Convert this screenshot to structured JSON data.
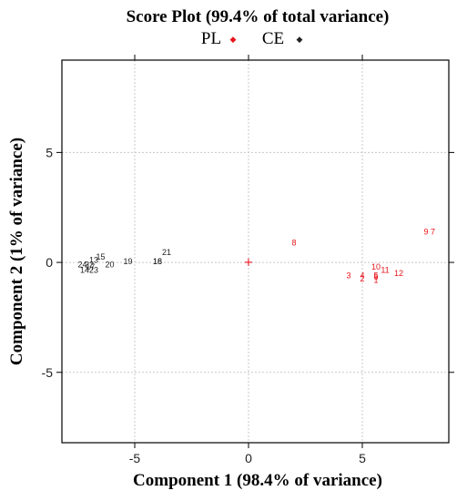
{
  "colors": {
    "PL": "#e8141b",
    "CE": "#222222"
  },
  "chart_data": {
    "type": "scatter",
    "title": "Score Plot (99.4% of total variance)",
    "xlabel": "Component 1 (98.4% of variance)",
    "ylabel": "Component 2 (1% of variance)",
    "xlim": [
      -8.2,
      8.8
    ],
    "ylim": [
      -8.2,
      9.2
    ],
    "xticks": [
      -5,
      0,
      5
    ],
    "yticks": [
      -5,
      0,
      5
    ],
    "grid": true,
    "legend_placement": "top-center",
    "legend": [
      {
        "name": "PL",
        "symbol": "◆"
      },
      {
        "name": "CE",
        "symbol": "◆"
      }
    ],
    "center_marker": {
      "x": 0,
      "y": 0,
      "symbol": "+"
    },
    "series": [
      {
        "name": "PL",
        "points": [
          {
            "label": "8",
            "x": 2.0,
            "y": 0.9
          },
          {
            "label": "9",
            "x": 7.8,
            "y": 1.4
          },
          {
            "label": "7",
            "x": 8.1,
            "y": 1.4
          },
          {
            "label": "10",
            "x": 5.6,
            "y": -0.2
          },
          {
            "label": "11",
            "x": 6.0,
            "y": -0.35
          },
          {
            "label": "12",
            "x": 6.6,
            "y": -0.5
          },
          {
            "label": "3",
            "x": 4.4,
            "y": -0.6
          },
          {
            "label": "4",
            "x": 5.0,
            "y": -0.6
          },
          {
            "label": "2",
            "x": 5.0,
            "y": -0.75
          },
          {
            "label": "5",
            "x": 5.6,
            "y": -0.6
          },
          {
            "label": "6",
            "x": 5.6,
            "y": -0.65
          },
          {
            "label": "1",
            "x": 5.6,
            "y": -0.8
          }
        ]
      },
      {
        "name": "CE",
        "points": [
          {
            "label": "21",
            "x": -3.6,
            "y": 0.45
          },
          {
            "label": "16",
            "x": -4.0,
            "y": 0.05
          },
          {
            "label": "18",
            "x": -4.0,
            "y": 0.05
          },
          {
            "label": "19",
            "x": -5.3,
            "y": 0.05
          },
          {
            "label": "20",
            "x": -6.1,
            "y": -0.1
          },
          {
            "label": "15",
            "x": -6.5,
            "y": 0.25
          },
          {
            "label": "13",
            "x": -6.8,
            "y": 0.1
          },
          {
            "label": "24",
            "x": -7.3,
            "y": -0.1
          },
          {
            "label": "22",
            "x": -7.0,
            "y": -0.1
          },
          {
            "label": "14",
            "x": -7.2,
            "y": -0.35
          },
          {
            "label": "23",
            "x": -6.8,
            "y": -0.35
          },
          {
            "label": "17",
            "x": -6.95,
            "y": -0.2
          }
        ]
      }
    ]
  }
}
